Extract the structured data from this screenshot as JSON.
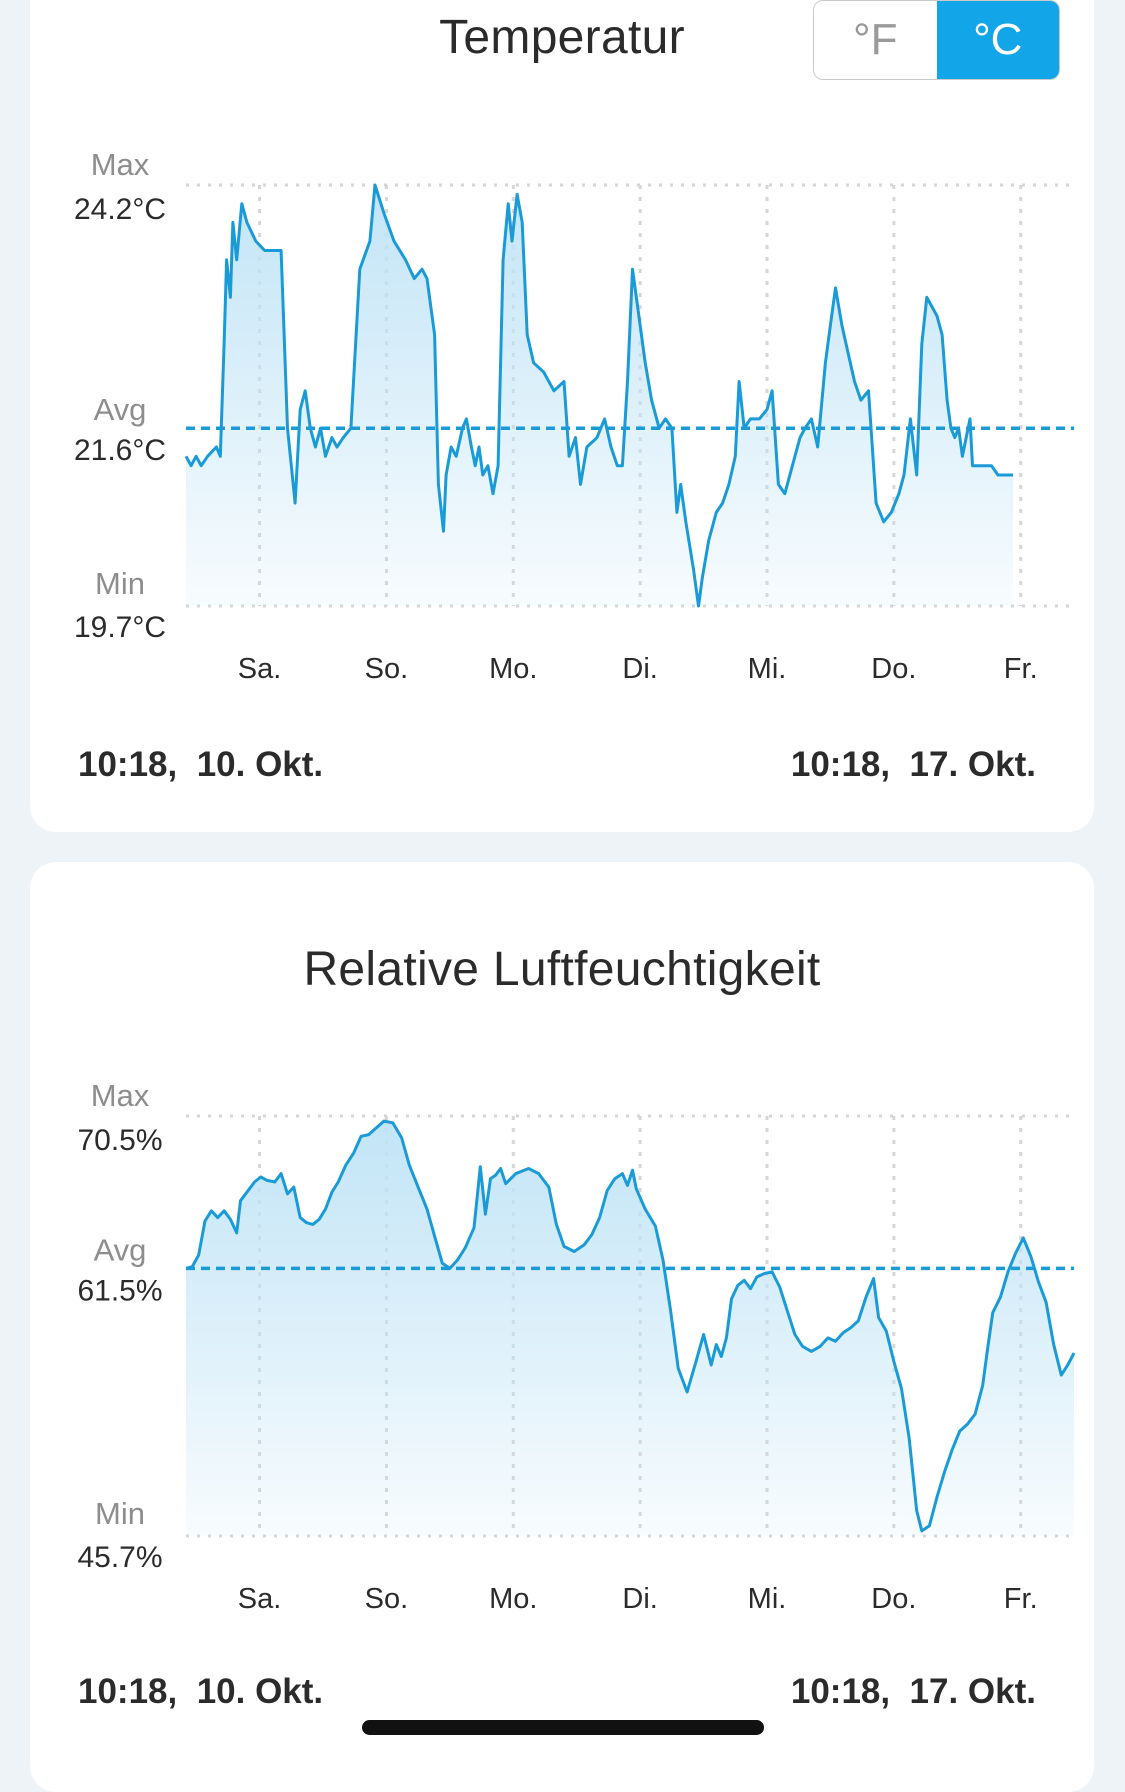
{
  "temperature": {
    "title": "Temperatur",
    "unit_toggle": {
      "fahrenheit": "°F",
      "celsius": "°C",
      "selected": "celsius",
      "selected_color": "#12a5e8"
    },
    "range_start": "10:18,  10. Okt.",
    "range_end": "10:18,  17. Okt."
  },
  "humidity": {
    "title": "Relative Luftfeuchtigkeit",
    "range_start": "10:18,  10. Okt.",
    "range_end": "10:18,  17. Okt."
  },
  "chart_data": [
    {
      "type": "area",
      "title": "Temperatur",
      "unit": "°C",
      "x_unit": "days since 10:18, 10. Okt.",
      "x_range": [
        0,
        7
      ],
      "ylim": [
        19.7,
        24.2
      ],
      "stats": {
        "max_label": "Max",
        "max": "24.2°C",
        "avg_label": "Avg",
        "avg": "21.6°C",
        "avg_value": 21.6,
        "min_label": "Min",
        "min": "19.7°C"
      },
      "x_ticks": [
        {
          "label": "Sa.",
          "x": 0.58
        },
        {
          "label": "So.",
          "x": 1.58
        },
        {
          "label": "Mo.",
          "x": 2.58
        },
        {
          "label": "Di.",
          "x": 3.58
        },
        {
          "label": "Mi.",
          "x": 4.58
        },
        {
          "label": "Do.",
          "x": 5.58
        },
        {
          "label": "Fr.",
          "x": 6.58
        }
      ],
      "grid": true,
      "line_color": "#1a9bd7",
      "points": [
        [
          0.0,
          21.3
        ],
        [
          0.04,
          21.2
        ],
        [
          0.08,
          21.3
        ],
        [
          0.12,
          21.2
        ],
        [
          0.17,
          21.3
        ],
        [
          0.24,
          21.4
        ],
        [
          0.27,
          21.3
        ],
        [
          0.3,
          22.5
        ],
        [
          0.32,
          23.4
        ],
        [
          0.35,
          23.0
        ],
        [
          0.37,
          23.8
        ],
        [
          0.4,
          23.4
        ],
        [
          0.44,
          24.0
        ],
        [
          0.48,
          23.8
        ],
        [
          0.55,
          23.6
        ],
        [
          0.62,
          23.5
        ],
        [
          0.75,
          23.5
        ],
        [
          0.8,
          21.6
        ],
        [
          0.86,
          20.8
        ],
        [
          0.9,
          21.8
        ],
        [
          0.94,
          22.0
        ],
        [
          0.98,
          21.6
        ],
        [
          1.02,
          21.4
        ],
        [
          1.06,
          21.6
        ],
        [
          1.1,
          21.3
        ],
        [
          1.15,
          21.5
        ],
        [
          1.19,
          21.4
        ],
        [
          1.24,
          21.5
        ],
        [
          1.3,
          21.6
        ],
        [
          1.37,
          23.3
        ],
        [
          1.45,
          23.6
        ],
        [
          1.49,
          24.2
        ],
        [
          1.56,
          23.9
        ],
        [
          1.64,
          23.6
        ],
        [
          1.73,
          23.4
        ],
        [
          1.8,
          23.2
        ],
        [
          1.86,
          23.3
        ],
        [
          1.9,
          23.2
        ],
        [
          1.96,
          22.6
        ],
        [
          1.99,
          21.0
        ],
        [
          2.03,
          20.5
        ],
        [
          2.05,
          21.1
        ],
        [
          2.09,
          21.4
        ],
        [
          2.13,
          21.3
        ],
        [
          2.18,
          21.6
        ],
        [
          2.21,
          21.7
        ],
        [
          2.25,
          21.4
        ],
        [
          2.28,
          21.2
        ],
        [
          2.31,
          21.4
        ],
        [
          2.34,
          21.1
        ],
        [
          2.38,
          21.2
        ],
        [
          2.42,
          20.9
        ],
        [
          2.46,
          21.2
        ],
        [
          2.5,
          23.4
        ],
        [
          2.54,
          24.0
        ],
        [
          2.57,
          23.6
        ],
        [
          2.61,
          24.1
        ],
        [
          2.65,
          23.8
        ],
        [
          2.69,
          22.6
        ],
        [
          2.74,
          22.3
        ],
        [
          2.82,
          22.2
        ],
        [
          2.9,
          22.0
        ],
        [
          2.98,
          22.1
        ],
        [
          3.02,
          21.3
        ],
        [
          3.07,
          21.5
        ],
        [
          3.11,
          21.0
        ],
        [
          3.16,
          21.4
        ],
        [
          3.24,
          21.5
        ],
        [
          3.3,
          21.7
        ],
        [
          3.35,
          21.4
        ],
        [
          3.4,
          21.2
        ],
        [
          3.44,
          21.2
        ],
        [
          3.48,
          22.1
        ],
        [
          3.52,
          23.3
        ],
        [
          3.56,
          22.9
        ],
        [
          3.62,
          22.3
        ],
        [
          3.67,
          21.9
        ],
        [
          3.73,
          21.6
        ],
        [
          3.78,
          21.7
        ],
        [
          3.83,
          21.6
        ],
        [
          3.87,
          20.7
        ],
        [
          3.9,
          21.0
        ],
        [
          3.94,
          20.6
        ],
        [
          4.0,
          20.1
        ],
        [
          4.04,
          19.7
        ],
        [
          4.07,
          20.0
        ],
        [
          4.12,
          20.4
        ],
        [
          4.18,
          20.7
        ],
        [
          4.23,
          20.8
        ],
        [
          4.28,
          21.0
        ],
        [
          4.33,
          21.3
        ],
        [
          4.36,
          22.1
        ],
        [
          4.4,
          21.6
        ],
        [
          4.45,
          21.7
        ],
        [
          4.52,
          21.7
        ],
        [
          4.58,
          21.8
        ],
        [
          4.62,
          22.0
        ],
        [
          4.67,
          21.0
        ],
        [
          4.72,
          20.9
        ],
        [
          4.78,
          21.2
        ],
        [
          4.84,
          21.5
        ],
        [
          4.88,
          21.6
        ],
        [
          4.93,
          21.7
        ],
        [
          4.98,
          21.4
        ],
        [
          5.04,
          22.3
        ],
        [
          5.08,
          22.7
        ],
        [
          5.12,
          23.1
        ],
        [
          5.17,
          22.7
        ],
        [
          5.22,
          22.4
        ],
        [
          5.27,
          22.1
        ],
        [
          5.32,
          21.9
        ],
        [
          5.38,
          22.0
        ],
        [
          5.44,
          20.8
        ],
        [
          5.5,
          20.6
        ],
        [
          5.56,
          20.7
        ],
        [
          5.62,
          20.9
        ],
        [
          5.66,
          21.1
        ],
        [
          5.71,
          21.7
        ],
        [
          5.76,
          21.1
        ],
        [
          5.8,
          22.5
        ],
        [
          5.84,
          23.0
        ],
        [
          5.88,
          22.9
        ],
        [
          5.92,
          22.8
        ],
        [
          5.96,
          22.6
        ],
        [
          6.0,
          21.9
        ],
        [
          6.03,
          21.6
        ],
        [
          6.06,
          21.5
        ],
        [
          6.09,
          21.6
        ],
        [
          6.12,
          21.3
        ],
        [
          6.15,
          21.5
        ],
        [
          6.18,
          21.7
        ],
        [
          6.2,
          21.2
        ],
        [
          6.24,
          21.2
        ],
        [
          6.3,
          21.2
        ],
        [
          6.35,
          21.2
        ],
        [
          6.4,
          21.1
        ],
        [
          6.46,
          21.1
        ],
        [
          6.52,
          21.1
        ]
      ]
    },
    {
      "type": "area",
      "title": "Relative Luftfeuchtigkeit",
      "unit": "%",
      "x_unit": "days since 10:18, 10. Okt.",
      "x_range": [
        0,
        7
      ],
      "ylim": [
        45.7,
        70.5
      ],
      "stats": {
        "max_label": "Max",
        "max": "70.5%",
        "avg_label": "Avg",
        "avg": "61.5%",
        "avg_value": 61.5,
        "min_label": "Min",
        "min": "45.7%"
      },
      "x_ticks": [
        {
          "label": "Sa.",
          "x": 0.58
        },
        {
          "label": "So.",
          "x": 1.58
        },
        {
          "label": "Mo.",
          "x": 2.58
        },
        {
          "label": "Di.",
          "x": 3.58
        },
        {
          "label": "Mi.",
          "x": 4.58
        },
        {
          "label": "Do.",
          "x": 5.58
        },
        {
          "label": "Fr.",
          "x": 6.58
        }
      ],
      "grid": true,
      "line_color": "#1a9bd7",
      "points": [
        [
          0.0,
          61.5
        ],
        [
          0.05,
          61.6
        ],
        [
          0.1,
          62.3
        ],
        [
          0.15,
          64.3
        ],
        [
          0.2,
          64.9
        ],
        [
          0.25,
          64.5
        ],
        [
          0.3,
          64.9
        ],
        [
          0.35,
          64.4
        ],
        [
          0.4,
          63.6
        ],
        [
          0.43,
          65.5
        ],
        [
          0.48,
          66.0
        ],
        [
          0.54,
          66.6
        ],
        [
          0.59,
          66.9
        ],
        [
          0.64,
          66.7
        ],
        [
          0.7,
          66.6
        ],
        [
          0.75,
          67.1
        ],
        [
          0.8,
          65.9
        ],
        [
          0.85,
          66.3
        ],
        [
          0.9,
          64.5
        ],
        [
          0.95,
          64.2
        ],
        [
          1.0,
          64.1
        ],
        [
          1.05,
          64.4
        ],
        [
          1.1,
          65.0
        ],
        [
          1.15,
          66.0
        ],
        [
          1.2,
          66.6
        ],
        [
          1.26,
          67.6
        ],
        [
          1.32,
          68.3
        ],
        [
          1.38,
          69.3
        ],
        [
          1.44,
          69.4
        ],
        [
          1.5,
          69.8
        ],
        [
          1.56,
          70.2
        ],
        [
          1.63,
          70.1
        ],
        [
          1.7,
          69.2
        ],
        [
          1.76,
          67.6
        ],
        [
          1.83,
          66.3
        ],
        [
          1.9,
          65.0
        ],
        [
          1.96,
          63.4
        ],
        [
          2.02,
          61.8
        ],
        [
          2.08,
          61.5
        ],
        [
          2.14,
          62.0
        ],
        [
          2.2,
          62.7
        ],
        [
          2.27,
          63.9
        ],
        [
          2.32,
          67.5
        ],
        [
          2.36,
          64.7
        ],
        [
          2.4,
          66.8
        ],
        [
          2.44,
          67.0
        ],
        [
          2.48,
          67.4
        ],
        [
          2.52,
          66.5
        ],
        [
          2.6,
          67.1
        ],
        [
          2.7,
          67.4
        ],
        [
          2.78,
          67.1
        ],
        [
          2.86,
          66.3
        ],
        [
          2.92,
          64.1
        ],
        [
          2.98,
          62.8
        ],
        [
          3.06,
          62.5
        ],
        [
          3.14,
          62.9
        ],
        [
          3.2,
          63.5
        ],
        [
          3.26,
          64.5
        ],
        [
          3.32,
          66.1
        ],
        [
          3.38,
          66.8
        ],
        [
          3.44,
          67.1
        ],
        [
          3.48,
          66.4
        ],
        [
          3.52,
          67.3
        ],
        [
          3.55,
          66.2
        ],
        [
          3.62,
          65.0
        ],
        [
          3.7,
          64.0
        ],
        [
          3.76,
          62.0
        ],
        [
          3.82,
          59.0
        ],
        [
          3.88,
          55.6
        ],
        [
          3.95,
          54.2
        ],
        [
          4.02,
          56.0
        ],
        [
          4.08,
          57.6
        ],
        [
          4.14,
          55.8
        ],
        [
          4.18,
          57.0
        ],
        [
          4.22,
          56.3
        ],
        [
          4.26,
          57.4
        ],
        [
          4.3,
          59.7
        ],
        [
          4.35,
          60.5
        ],
        [
          4.4,
          60.8
        ],
        [
          4.45,
          60.3
        ],
        [
          4.5,
          61.0
        ],
        [
          4.56,
          61.2
        ],
        [
          4.62,
          61.3
        ],
        [
          4.68,
          60.4
        ],
        [
          4.74,
          59.0
        ],
        [
          4.8,
          57.6
        ],
        [
          4.86,
          56.9
        ],
        [
          4.93,
          56.6
        ],
        [
          5.0,
          56.9
        ],
        [
          5.06,
          57.4
        ],
        [
          5.12,
          57.2
        ],
        [
          5.18,
          57.7
        ],
        [
          5.24,
          58.0
        ],
        [
          5.3,
          58.4
        ],
        [
          5.36,
          59.8
        ],
        [
          5.42,
          60.9
        ],
        [
          5.46,
          58.6
        ],
        [
          5.52,
          57.8
        ],
        [
          5.58,
          56.0
        ],
        [
          5.64,
          54.4
        ],
        [
          5.7,
          51.5
        ],
        [
          5.76,
          47.2
        ],
        [
          5.8,
          46.0
        ],
        [
          5.86,
          46.3
        ],
        [
          5.92,
          48.0
        ],
        [
          5.98,
          49.5
        ],
        [
          6.04,
          50.8
        ],
        [
          6.1,
          51.9
        ],
        [
          6.16,
          52.3
        ],
        [
          6.22,
          52.9
        ],
        [
          6.28,
          54.6
        ],
        [
          6.32,
          56.8
        ],
        [
          6.36,
          58.9
        ],
        [
          6.42,
          59.8
        ],
        [
          6.48,
          61.3
        ],
        [
          6.54,
          62.4
        ],
        [
          6.6,
          63.3
        ],
        [
          6.66,
          62.2
        ],
        [
          6.72,
          60.7
        ],
        [
          6.78,
          59.5
        ],
        [
          6.84,
          57.0
        ],
        [
          6.9,
          55.2
        ],
        [
          6.95,
          55.8
        ],
        [
          7.0,
          56.5
        ]
      ]
    }
  ]
}
